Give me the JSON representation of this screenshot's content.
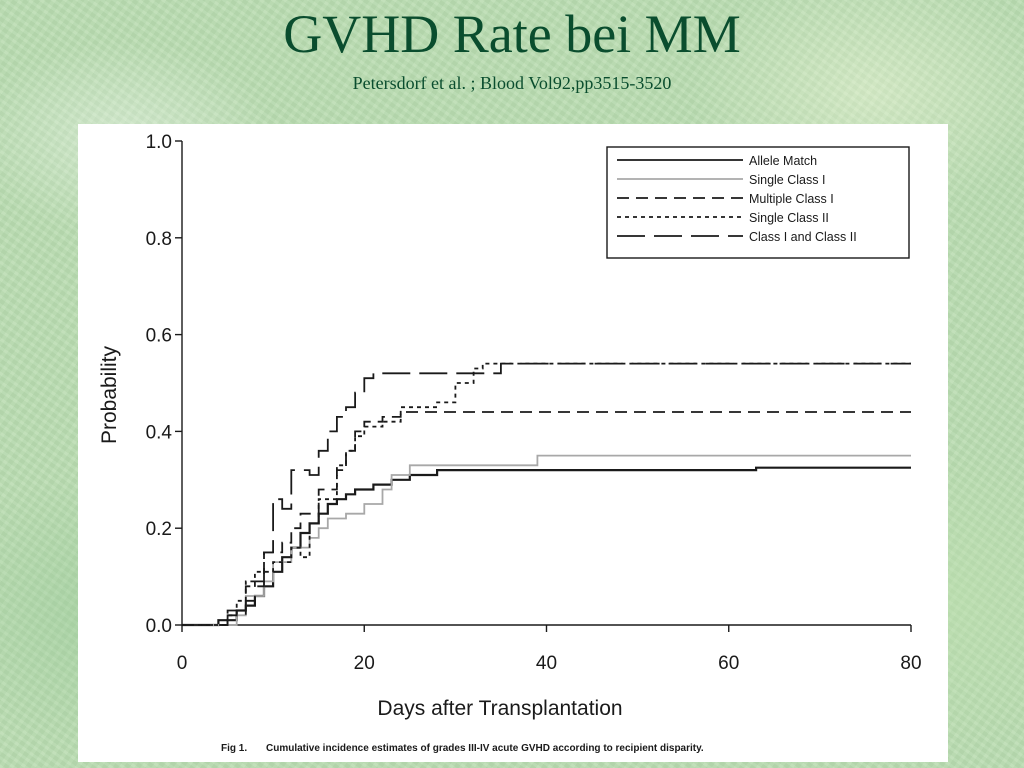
{
  "slide": {
    "title": "GVHD Rate bei MM",
    "subtitle": "Petersdorf et al. ; Blood Vol92,pp3515-3520"
  },
  "caption": {
    "label": "Fig 1.",
    "text": "Cumulative incidence estimates of grades III-IV acute GVHD according to recipient disparity."
  },
  "colors": {
    "title": "#0a4d2e",
    "ink": "#1a1a1a",
    "light_gray_series": "#a8a8a8",
    "panel": "#ffffff"
  },
  "chart_data": {
    "type": "line",
    "line_shape": "step",
    "xlabel": "Days after Transplantation",
    "ylabel": "Probability",
    "xlim": [
      0,
      80
    ],
    "ylim": [
      0,
      1.0
    ],
    "x_ticks": [
      0,
      20,
      40,
      60,
      80
    ],
    "x_tick_labels": [
      "0",
      "20",
      "40",
      "60",
      "80"
    ],
    "y_ticks": [
      0,
      0.2,
      0.4,
      0.6,
      0.8,
      1.0
    ],
    "y_tick_labels": [
      "0.0",
      "0.2",
      "0.4",
      "0.6",
      "0.8",
      "1.0"
    ],
    "grid": false,
    "legend_position": "top-right",
    "series": [
      {
        "name": "Allele Match",
        "style": "solid",
        "color": "#1a1a1a",
        "points": [
          [
            0,
            0
          ],
          [
            4,
            0
          ],
          [
            4,
            0.01
          ],
          [
            6,
            0.01
          ],
          [
            6,
            0.03
          ],
          [
            7,
            0.03
          ],
          [
            7,
            0.04
          ],
          [
            8,
            0.04
          ],
          [
            8,
            0.06
          ],
          [
            9,
            0.06
          ],
          [
            9,
            0.08
          ],
          [
            10,
            0.08
          ],
          [
            10,
            0.11
          ],
          [
            11,
            0.11
          ],
          [
            11,
            0.14
          ],
          [
            12,
            0.14
          ],
          [
            12,
            0.16
          ],
          [
            13,
            0.16
          ],
          [
            13,
            0.19
          ],
          [
            14,
            0.19
          ],
          [
            14,
            0.21
          ],
          [
            15,
            0.21
          ],
          [
            15,
            0.23
          ],
          [
            16,
            0.23
          ],
          [
            16,
            0.25
          ],
          [
            17,
            0.25
          ],
          [
            17,
            0.26
          ],
          [
            18,
            0.26
          ],
          [
            18,
            0.27
          ],
          [
            19,
            0.27
          ],
          [
            19,
            0.28
          ],
          [
            21,
            0.28
          ],
          [
            21,
            0.29
          ],
          [
            23,
            0.29
          ],
          [
            23,
            0.3
          ],
          [
            25,
            0.3
          ],
          [
            25,
            0.31
          ],
          [
            28,
            0.31
          ],
          [
            28,
            0.32
          ],
          [
            63,
            0.32
          ],
          [
            63,
            0.325
          ],
          [
            80,
            0.325
          ]
        ]
      },
      {
        "name": "Single Class I",
        "style": "solid",
        "color": "#a8a8a8",
        "points": [
          [
            0,
            0
          ],
          [
            6,
            0
          ],
          [
            6,
            0.02
          ],
          [
            7,
            0.02
          ],
          [
            7,
            0.06
          ],
          [
            9,
            0.06
          ],
          [
            9,
            0.09
          ],
          [
            10,
            0.09
          ],
          [
            10,
            0.13
          ],
          [
            12,
            0.13
          ],
          [
            12,
            0.16
          ],
          [
            14,
            0.16
          ],
          [
            14,
            0.18
          ],
          [
            15,
            0.18
          ],
          [
            15,
            0.2
          ],
          [
            16,
            0.2
          ],
          [
            16,
            0.22
          ],
          [
            18,
            0.22
          ],
          [
            18,
            0.23
          ],
          [
            20,
            0.23
          ],
          [
            20,
            0.25
          ],
          [
            22,
            0.25
          ],
          [
            22,
            0.28
          ],
          [
            23,
            0.28
          ],
          [
            23,
            0.31
          ],
          [
            25,
            0.31
          ],
          [
            25,
            0.33
          ],
          [
            39,
            0.33
          ],
          [
            39,
            0.35
          ],
          [
            80,
            0.35
          ]
        ]
      },
      {
        "name": "Multiple Class I",
        "style": "dashed",
        "color": "#1a1a1a",
        "points": [
          [
            0,
            0
          ],
          [
            5,
            0
          ],
          [
            5,
            0.03
          ],
          [
            7,
            0.03
          ],
          [
            7,
            0.08
          ],
          [
            9,
            0.08
          ],
          [
            9,
            0.15
          ],
          [
            11,
            0.15
          ],
          [
            11,
            0.17
          ],
          [
            12,
            0.17
          ],
          [
            12,
            0.2
          ],
          [
            13,
            0.2
          ],
          [
            13,
            0.23
          ],
          [
            15,
            0.23
          ],
          [
            15,
            0.28
          ],
          [
            17,
            0.28
          ],
          [
            17,
            0.32
          ],
          [
            18,
            0.32
          ],
          [
            18,
            0.36
          ],
          [
            19,
            0.36
          ],
          [
            19,
            0.4
          ],
          [
            20,
            0.4
          ],
          [
            20,
            0.42
          ],
          [
            22,
            0.42
          ],
          [
            22,
            0.43
          ],
          [
            24,
            0.43
          ],
          [
            24,
            0.44
          ],
          [
            80,
            0.44
          ]
        ]
      },
      {
        "name": "Single Class II",
        "style": "dotted",
        "color": "#1a1a1a",
        "points": [
          [
            0,
            0
          ],
          [
            5,
            0
          ],
          [
            5,
            0.02
          ],
          [
            6,
            0.02
          ],
          [
            6,
            0.05
          ],
          [
            7,
            0.05
          ],
          [
            7,
            0.09
          ],
          [
            8,
            0.09
          ],
          [
            8,
            0.11
          ],
          [
            10,
            0.11
          ],
          [
            10,
            0.13
          ],
          [
            12,
            0.13
          ],
          [
            12,
            0.16
          ],
          [
            13,
            0.16
          ],
          [
            13,
            0.14
          ],
          [
            14,
            0.14
          ],
          [
            14,
            0.21
          ],
          [
            15,
            0.21
          ],
          [
            15,
            0.26
          ],
          [
            17,
            0.26
          ],
          [
            17,
            0.33
          ],
          [
            18,
            0.33
          ],
          [
            18,
            0.36
          ],
          [
            19,
            0.36
          ],
          [
            19,
            0.39
          ],
          [
            20,
            0.39
          ],
          [
            20,
            0.41
          ],
          [
            22,
            0.41
          ],
          [
            22,
            0.42
          ],
          [
            24,
            0.42
          ],
          [
            24,
            0.45
          ],
          [
            28,
            0.45
          ],
          [
            28,
            0.46
          ],
          [
            30,
            0.46
          ],
          [
            30,
            0.5
          ],
          [
            32,
            0.5
          ],
          [
            32,
            0.53
          ],
          [
            33,
            0.53
          ],
          [
            33,
            0.54
          ],
          [
            80,
            0.54
          ]
        ]
      },
      {
        "name": "Class I and Class II",
        "style": "long-dash",
        "color": "#1a1a1a",
        "points": [
          [
            0,
            0
          ],
          [
            5,
            0
          ],
          [
            5,
            0.02
          ],
          [
            7,
            0.02
          ],
          [
            7,
            0.05
          ],
          [
            8,
            0.05
          ],
          [
            8,
            0.09
          ],
          [
            9,
            0.09
          ],
          [
            9,
            0.15
          ],
          [
            10,
            0.15
          ],
          [
            10,
            0.26
          ],
          [
            11,
            0.26
          ],
          [
            11,
            0.24
          ],
          [
            12,
            0.24
          ],
          [
            12,
            0.32
          ],
          [
            14,
            0.32
          ],
          [
            14,
            0.31
          ],
          [
            15,
            0.31
          ],
          [
            15,
            0.36
          ],
          [
            16,
            0.36
          ],
          [
            16,
            0.4
          ],
          [
            17,
            0.4
          ],
          [
            17,
            0.43
          ],
          [
            18,
            0.43
          ],
          [
            18,
            0.45
          ],
          [
            19,
            0.45
          ],
          [
            19,
            0.48
          ],
          [
            20,
            0.48
          ],
          [
            20,
            0.51
          ],
          [
            21,
            0.51
          ],
          [
            21,
            0.52
          ],
          [
            35,
            0.52
          ],
          [
            35,
            0.54
          ],
          [
            80,
            0.54
          ]
        ]
      }
    ]
  }
}
